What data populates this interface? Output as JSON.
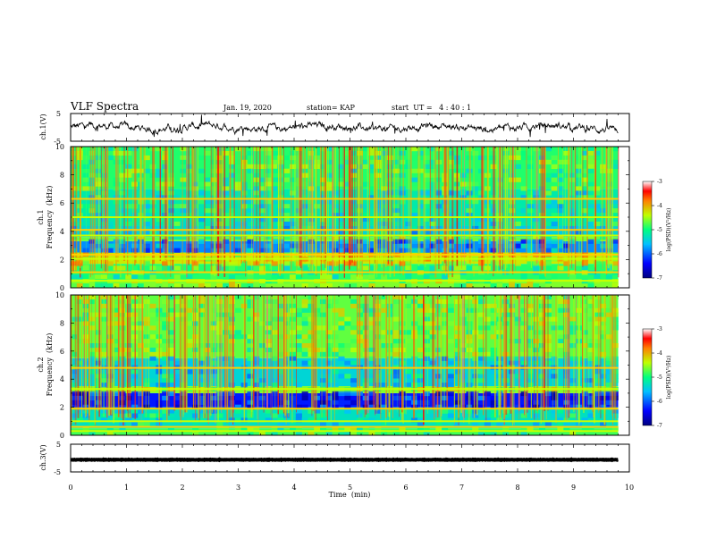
{
  "header": {
    "title": "VLF Spectra",
    "date": "Jan. 19, 2020",
    "station": "station= KAP",
    "start": "start  UT =   4 : 40 : 1"
  },
  "chart_data": {
    "type": "heatmap",
    "x_axis": {
      "label": "Time  (min)",
      "range": [
        0,
        10
      ],
      "ticks": [
        "0",
        "1",
        "2",
        "3",
        "4",
        "5",
        "6",
        "7",
        "8",
        "9",
        "10"
      ]
    },
    "panels": [
      {
        "kind": "waveform",
        "ylabel": "ch.1(V)",
        "ylim": [
          -5,
          5
        ],
        "yticks": [
          "5",
          "-5"
        ],
        "data_end_min": 9.8,
        "baseline": 0,
        "amplitude": 1.5
      },
      {
        "kind": "spectrogram",
        "ylabel": "ch.1\nFrequency (kHz)",
        "ylabel_lines": [
          "ch.1",
          "Frequency  (kHz)"
        ],
        "ylim": [
          0,
          10
        ],
        "yticks": [
          "0",
          "2",
          "4",
          "6",
          "8",
          "10"
        ],
        "data_end_min": 9.8,
        "bands_khz": [
          {
            "f0": 0.0,
            "f1": 0.6,
            "level": -4.6
          },
          {
            "f0": 0.6,
            "f1": 1.7,
            "level": -4.9
          },
          {
            "f0": 1.7,
            "f1": 2.5,
            "level": -4.3
          },
          {
            "f0": 2.5,
            "f1": 3.3,
            "level": -5.8
          },
          {
            "f0": 3.3,
            "f1": 3.6,
            "level": -4.7
          },
          {
            "f0": 3.6,
            "f1": 4.4,
            "level": -5.4
          },
          {
            "f0": 4.4,
            "f1": 7.0,
            "level": -5.2
          },
          {
            "f0": 7.0,
            "f1": 10.0,
            "level": -4.9
          }
        ],
        "lines_khz": [
          0.5,
          1.1,
          2.05,
          2.35,
          3.7,
          4.1,
          5.0,
          6.3
        ]
      },
      {
        "kind": "spectrogram",
        "ylabel": "ch.2\nFrequency (kHz)",
        "ylabel_lines": [
          "ch.2",
          "Frequency  (kHz)"
        ],
        "ylim": [
          0,
          10
        ],
        "yticks": [
          "0",
          "2",
          "4",
          "6",
          "8",
          "10"
        ],
        "data_end_min": 9.8,
        "bands_khz": [
          {
            "f0": 0.0,
            "f1": 0.5,
            "level": -4.8
          },
          {
            "f0": 0.5,
            "f1": 2.0,
            "level": -5.3
          },
          {
            "f0": 2.0,
            "f1": 3.0,
            "level": -6.3
          },
          {
            "f0": 3.0,
            "f1": 3.5,
            "level": -4.6
          },
          {
            "f0": 3.5,
            "f1": 5.5,
            "level": -5.4
          },
          {
            "f0": 5.5,
            "f1": 10.0,
            "level": -4.7
          }
        ],
        "lines_khz": [
          0.3,
          0.6,
          1.0,
          1.9,
          3.3,
          4.8
        ]
      },
      {
        "kind": "waveform",
        "ylabel": "ch.3(V)",
        "ylim": [
          -5,
          5
        ],
        "yticks": [
          "5",
          "-5"
        ],
        "data_end_min": 9.8,
        "baseline": -0.6,
        "amplitude": 0.15
      }
    ],
    "colorbars": [
      {
        "label": "log(PSD)(V²/Hz)",
        "range": [
          -7,
          -3
        ],
        "ticks": [
          "-3",
          "-4",
          "-5",
          "-6",
          "-7"
        ]
      },
      {
        "label": "log(PSD)(V²/Hz)",
        "range": [
          -7,
          -3
        ],
        "ticks": [
          "-3",
          "-4",
          "-5",
          "-6",
          "-7"
        ]
      }
    ]
  }
}
